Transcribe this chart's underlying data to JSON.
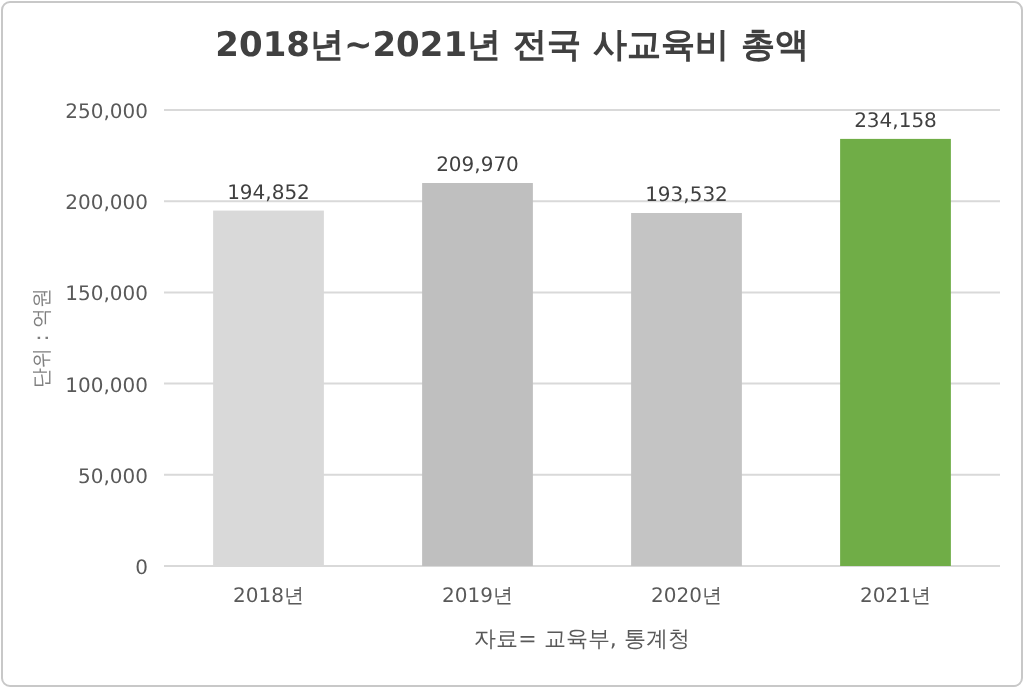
{
  "chart_data": {
    "type": "bar",
    "title": "2018년~2021년 전국 사교육비 총액",
    "ylabel": "단위 : 억원",
    "annotations": [
      "자료= 교육부, 통계청"
    ],
    "categories": [
      "2018년",
      "2019년",
      "2020년",
      "2021년"
    ],
    "values": [
      194852,
      209970,
      193532,
      234158
    ],
    "colors": [
      "#d9d9d9",
      "#bfbfbf",
      "#c4c4c4",
      "#70ad47"
    ],
    "value_labels": [
      "194,852",
      "209,970",
      "193,532",
      "234,158"
    ],
    "ylim": [
      0,
      250000
    ],
    "yticks": [
      0,
      {
        "value": 50000,
        "label": "50,000"
      },
      {
        "value": 100000,
        "label": "100,000"
      },
      {
        "value": 150000,
        "label": "150,000"
      },
      {
        "value": 200000,
        "label": "200,000"
      },
      {
        "value": 250000,
        "label": "250,000"
      }
    ],
    "grid": "y"
  }
}
